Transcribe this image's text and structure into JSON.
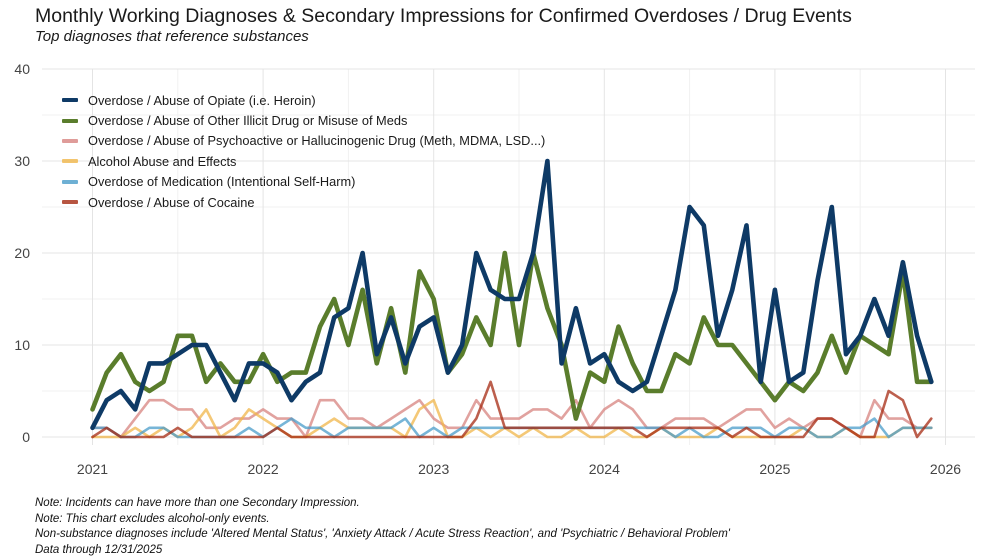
{
  "title": "Monthly Working Diagnoses & Secondary Impressions for Confirmed Overdoses / Drug Events",
  "subtitle": "Top diagnoses that reference substances",
  "notes": [
    "Note: Incidents can have more than one Secondary Impression.",
    "Note: This chart excludes alcohol-only events.",
    "Non-substance diagnoses include 'Altered Mental Status', 'Anxiety Attack / Acute Stress Reaction', and 'Psychiatric / Behavioral Problem'",
    "Data through 12/31/2025"
  ],
  "chart_data": {
    "type": "line",
    "title": "Monthly Working Diagnoses & Secondary Impressions for Confirmed Overdoses / Drug Events",
    "subtitle": "Top diagnoses that reference substances",
    "xlabel": "",
    "ylabel": "",
    "xlim": [
      2020.95,
      2026.1
    ],
    "ylim": [
      0,
      40
    ],
    "x_ticks": [
      2021,
      2022,
      2023,
      2024,
      2025,
      2026
    ],
    "x_tick_labels": [
      "2021",
      "2022",
      "2023",
      "2024",
      "2025",
      "2026"
    ],
    "y_ticks": [
      0,
      10,
      20,
      30,
      40
    ],
    "y_tick_labels": [
      "0",
      "10",
      "20",
      "30",
      "40"
    ],
    "grid": true,
    "legend_position": "top-left",
    "x_start": "2021-01",
    "x_interval": "month",
    "series": [
      {
        "name": "Overdose / Abuse of Opiate (i.e. Heroin)",
        "color": "#0e3a66",
        "emphasis": true,
        "values": [
          1,
          4,
          5,
          3,
          8,
          8,
          9,
          10,
          10,
          7,
          4,
          8,
          8,
          7,
          4,
          6,
          7,
          13,
          14,
          20,
          9,
          13,
          8,
          12,
          13,
          7,
          10,
          20,
          16,
          15,
          15,
          20,
          30,
          8,
          14,
          8,
          9,
          6,
          5,
          6,
          11,
          16,
          25,
          23,
          11,
          16,
          23,
          6,
          16,
          6,
          7,
          17,
          25,
          9,
          11,
          15,
          11,
          19,
          11,
          6
        ]
      },
      {
        "name": "Overdose / Abuse of Other Illicit Drug or Misuse of Meds",
        "color": "#5a7d2c",
        "emphasis": true,
        "values": [
          3,
          7,
          9,
          6,
          5,
          6,
          11,
          11,
          6,
          8,
          6,
          6,
          9,
          6,
          7,
          7,
          12,
          15,
          10,
          16,
          8,
          14,
          7,
          18,
          15,
          7,
          9,
          13,
          10,
          20,
          10,
          20,
          14,
          10,
          2,
          7,
          6,
          12,
          8,
          5,
          5,
          9,
          8,
          13,
          10,
          10,
          8,
          6,
          4,
          6,
          5,
          7,
          11,
          7,
          11,
          10,
          9,
          18,
          6,
          6
        ]
      },
      {
        "name": "Overdose / Abuse of Psychoactive or Hallucinogenic Drug (Meth, MDMA, LSD...)",
        "color": "#d7837f",
        "values": [
          1,
          1,
          0,
          2,
          4,
          4,
          3,
          3,
          1,
          1,
          2,
          2,
          3,
          2,
          2,
          0,
          4,
          4,
          2,
          2,
          1,
          2,
          3,
          4,
          2,
          1,
          1,
          4,
          2,
          2,
          2,
          3,
          3,
          2,
          4,
          1,
          3,
          4,
          3,
          1,
          1,
          2,
          2,
          2,
          1,
          2,
          3,
          3,
          1,
          2,
          1,
          2,
          2,
          1,
          0,
          4,
          2,
          2,
          1,
          1
        ]
      },
      {
        "name": "Alcohol Abuse and Effects",
        "color": "#f0b64a",
        "values": [
          0,
          0,
          0,
          1,
          0,
          1,
          0,
          1,
          3,
          0,
          1,
          3,
          2,
          1,
          0,
          0,
          1,
          2,
          1,
          1,
          1,
          1,
          0,
          3,
          4,
          0,
          0,
          1,
          0,
          1,
          0,
          1,
          0,
          0,
          1,
          0,
          0,
          1,
          0,
          0,
          1,
          0,
          0,
          0,
          1,
          0,
          0,
          0,
          0,
          0,
          1,
          0,
          0,
          1,
          0,
          0,
          0,
          1,
          1,
          1
        ]
      },
      {
        "name": "Overdose of Medication (Intentional Self-Harm)",
        "color": "#4a9cc9",
        "values": [
          1,
          1,
          0,
          0,
          1,
          1,
          0,
          0,
          0,
          0,
          0,
          1,
          0,
          1,
          2,
          1,
          1,
          0,
          1,
          1,
          1,
          1,
          2,
          0,
          1,
          0,
          1,
          1,
          1,
          1,
          1,
          1,
          1,
          1,
          1,
          1,
          1,
          1,
          1,
          1,
          1,
          0,
          1,
          0,
          0,
          1,
          1,
          1,
          0,
          1,
          1,
          0,
          0,
          1,
          1,
          2,
          0,
          1,
          1,
          1
        ]
      },
      {
        "name": "Overdose / Abuse of Cocaine",
        "color": "#a52a12",
        "values": [
          0,
          1,
          0,
          0,
          0,
          0,
          1,
          0,
          0,
          0,
          0,
          0,
          0,
          1,
          0,
          0,
          0,
          0,
          0,
          0,
          0,
          0,
          0,
          0,
          0,
          0,
          0,
          2,
          6,
          1,
          1,
          1,
          1,
          1,
          1,
          1,
          1,
          1,
          1,
          0,
          1,
          1,
          1,
          1,
          1,
          0,
          1,
          0,
          0,
          0,
          0,
          2,
          2,
          1,
          0,
          0,
          5,
          4,
          0,
          2
        ]
      }
    ]
  }
}
